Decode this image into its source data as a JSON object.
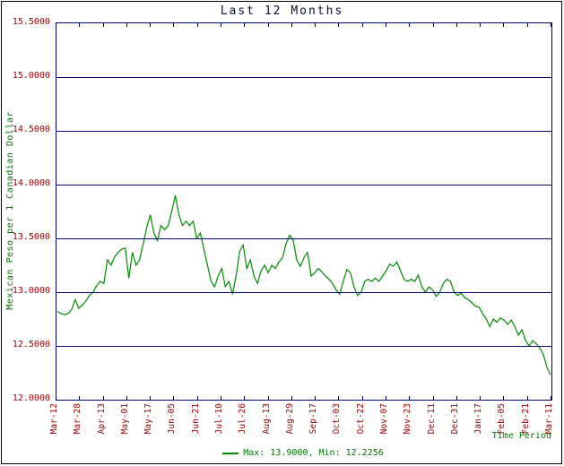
{
  "title": "Last 12 Months",
  "y_axis_title": "Mexican Peso per 1 Canadian Dollar",
  "x_axis_title": "Time Period",
  "legend": {
    "label": "Max: 13.9000, Min: 12.2256"
  },
  "colors": {
    "line": "#008a00",
    "grid": "#000066",
    "tick_label": "#a00000",
    "axis_title": "#007700",
    "title_text": "#0b0b3b",
    "border": "#000000"
  },
  "chart_data": {
    "type": "line",
    "title": "Last 12 Months",
    "xlabel": "Time Period",
    "ylabel": "Mexican Peso per 1 Canadian Dollar",
    "ylim": [
      12.0,
      15.5
    ],
    "grid": true,
    "legend_position": "bottom-center",
    "max": "13.9000",
    "min": "12.2256",
    "y_ticks": [
      "15.5000",
      "15.0000",
      "14.5000",
      "14.0000",
      "13.5000",
      "13.0000",
      "12.5000",
      "12.0000"
    ],
    "x_ticks": [
      "Mar-12",
      "Mar-28",
      "Apr-13",
      "May-01",
      "May-17",
      "Jun-05",
      "Jun-21",
      "Jul-10",
      "Jul-26",
      "Aug-13",
      "Aug-29",
      "Sep-17",
      "Oct-03",
      "Oct-22",
      "Nov-07",
      "Nov-23",
      "Dec-11",
      "Dec-31",
      "Jan-17",
      "Feb-05",
      "Feb-21",
      "Mar-11"
    ],
    "series": [
      {
        "name": "Max: 13.9000, Min: 12.2256",
        "values": [
          12.82,
          12.8,
          12.79,
          12.8,
          12.84,
          12.93,
          12.85,
          12.88,
          12.92,
          12.97,
          13.0,
          13.06,
          13.1,
          13.08,
          13.3,
          13.25,
          13.33,
          13.37,
          13.4,
          13.41,
          13.13,
          13.37,
          13.25,
          13.3,
          13.45,
          13.6,
          13.72,
          13.55,
          13.48,
          13.62,
          13.58,
          13.62,
          13.75,
          13.9,
          13.72,
          13.62,
          13.66,
          13.62,
          13.66,
          13.5,
          13.55,
          13.4,
          13.25,
          13.1,
          13.05,
          13.15,
          13.22,
          13.05,
          13.1,
          12.98,
          13.15,
          13.38,
          13.44,
          13.22,
          13.3,
          13.15,
          13.08,
          13.2,
          13.25,
          13.18,
          13.25,
          13.22,
          13.28,
          13.32,
          13.45,
          13.53,
          13.48,
          13.3,
          13.24,
          13.32,
          13.37,
          13.15,
          13.18,
          13.22,
          13.19,
          13.15,
          13.12,
          13.08,
          13.02,
          12.98,
          13.1,
          13.21,
          13.18,
          13.05,
          12.97,
          13.0,
          13.1,
          13.12,
          13.1,
          13.13,
          13.1,
          13.15,
          13.2,
          13.26,
          13.24,
          13.28,
          13.2,
          13.12,
          13.1,
          13.12,
          13.1,
          13.16,
          13.05,
          13.0,
          13.05,
          13.02,
          12.96,
          13.0,
          13.08,
          13.12,
          13.1,
          13.0,
          12.97,
          12.99,
          12.95,
          12.93,
          12.9,
          12.87,
          12.86,
          12.8,
          12.75,
          12.68,
          12.75,
          12.72,
          12.76,
          12.74,
          12.7,
          12.74,
          12.68,
          12.6,
          12.65,
          12.55,
          12.5,
          12.55,
          12.52,
          12.48,
          12.42,
          12.3,
          12.23
        ]
      }
    ]
  }
}
